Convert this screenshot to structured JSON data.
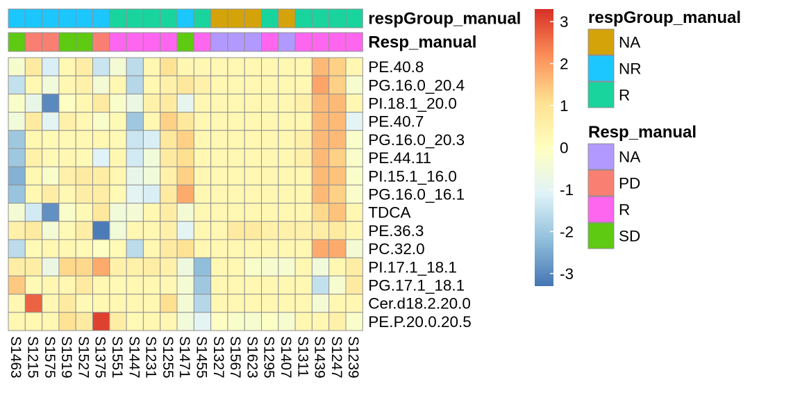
{
  "chart_data": {
    "type": "heatmap",
    "columns": [
      "S1463",
      "S1215",
      "S1575",
      "S1519",
      "S1527",
      "S1375",
      "S1551",
      "S1447",
      "S1231",
      "S1255",
      "S1471",
      "S1455",
      "S1327",
      "S1567",
      "S1623",
      "S1295",
      "S1407",
      "S1311",
      "S1439",
      "S1247",
      "S1239"
    ],
    "rows": [
      "PE.40.8",
      "PG.16.0_20.4",
      "PI.18.1_20.0",
      "PE.40.7",
      "PG.16.0_20.3",
      "PE.44.11",
      "PI.15.1_16.0",
      "PG.16.0_16.1",
      "TDCA",
      "PE.36.3",
      "PC.32.0",
      "PI.17.1_18.1",
      "PG.17.1_18.1",
      "Cer.d18.2.20.0",
      "PE.P.20.0.20.5"
    ],
    "values": [
      [
        -0.3,
        0.7,
        -1.2,
        0.3,
        0.6,
        -1.4,
        -0.4,
        -1.6,
        0.3,
        1.0,
        0.3,
        0.3,
        0.3,
        0.3,
        0.3,
        0.3,
        0.3,
        0.3,
        1.6,
        1.3,
        0.3
      ],
      [
        -1.5,
        0.3,
        -0.5,
        0.3,
        0.5,
        -0.4,
        0.3,
        -1.7,
        0.3,
        0.5,
        0.8,
        0.5,
        0.3,
        0.3,
        0.3,
        0.3,
        0.3,
        0.3,
        1.9,
        1.3,
        -0.3
      ],
      [
        -0.2,
        -0.8,
        -3.0,
        -0.1,
        0.3,
        0.7,
        -0.2,
        -0.7,
        0.5,
        0.7,
        -0.9,
        0.3,
        0.3,
        0.3,
        0.3,
        0.3,
        0.3,
        0.5,
        1.6,
        1.6,
        0.3
      ],
      [
        -0.5,
        0.7,
        -1.0,
        0.5,
        0.3,
        -0.2,
        0.2,
        -2.0,
        0.3,
        1.3,
        0.8,
        0.3,
        0.3,
        0.3,
        0.3,
        0.3,
        0.3,
        0.3,
        1.6,
        1.6,
        -1.0
      ],
      [
        -2.0,
        0.3,
        0.2,
        0.2,
        0.3,
        0.3,
        0.2,
        -1.4,
        -1.2,
        0.8,
        1.3,
        0.3,
        0.3,
        0.3,
        0.3,
        0.3,
        0.3,
        0.5,
        1.6,
        1.6,
        -0.2
      ],
      [
        -2.0,
        0.5,
        0.2,
        0.3,
        0.2,
        -1.1,
        0.3,
        -1.3,
        -0.5,
        0.7,
        1.1,
        0.3,
        0.3,
        0.3,
        0.3,
        0.3,
        0.3,
        0.5,
        1.6,
        1.3,
        -0.2
      ],
      [
        -2.4,
        0.3,
        -0.2,
        0.5,
        0.7,
        0.6,
        0.3,
        -0.8,
        -0.5,
        0.5,
        1.3,
        0.3,
        0.3,
        0.3,
        0.3,
        0.3,
        0.3,
        0.3,
        1.6,
        1.5,
        -0.2
      ],
      [
        -2.1,
        0.3,
        0.6,
        0.3,
        0.6,
        0.6,
        0.2,
        -1.0,
        -1.2,
        0.7,
        1.8,
        0.3,
        0.3,
        0.3,
        0.3,
        0.3,
        0.3,
        0.3,
        1.6,
        1.3,
        -0.2
      ],
      [
        -0.4,
        -1.3,
        -2.9,
        -0.2,
        0.2,
        0.8,
        -0.5,
        -0.4,
        0.3,
        0.6,
        -0.4,
        0.3,
        0.3,
        0.3,
        0.3,
        0.3,
        0.3,
        0.3,
        1.2,
        1.5,
        0.3
      ],
      [
        0.5,
        0.7,
        -0.4,
        0.2,
        0.6,
        -3.2,
        -0.5,
        0.3,
        0.3,
        0.5,
        -1.0,
        0.3,
        0.3,
        0.7,
        0.7,
        0.5,
        0.5,
        0.5,
        0.6,
        0.7,
        0.3
      ],
      [
        -1.6,
        0.2,
        0.3,
        0.3,
        0.2,
        -0.1,
        0.2,
        -1.6,
        0.3,
        0.7,
        1.0,
        0.3,
        0.3,
        0.3,
        0.3,
        0.3,
        0.3,
        0.3,
        1.8,
        1.8,
        -0.4
      ],
      [
        0.6,
        0.6,
        -0.7,
        1.2,
        1.2,
        1.8,
        0.5,
        0.5,
        0.6,
        0.5,
        -0.6,
        -2.2,
        0.3,
        0.3,
        -0.2,
        -0.3,
        -0.3,
        0.3,
        -0.5,
        0.3,
        0.6
      ],
      [
        1.4,
        0.2,
        0.3,
        0.3,
        0.7,
        0.3,
        0.2,
        0.3,
        0.3,
        0.3,
        -0.4,
        -2.0,
        0.3,
        0.3,
        0.3,
        0.3,
        0.3,
        0.3,
        -1.5,
        -0.3,
        0.7
      ],
      [
        0.3,
        2.7,
        0.3,
        0.7,
        0.2,
        0.3,
        0.3,
        0.3,
        0.3,
        1.1,
        -0.4,
        -1.7,
        0.3,
        0.3,
        0.3,
        0.3,
        0.3,
        0.3,
        -0.4,
        0.3,
        0.3
      ],
      [
        0.3,
        0.3,
        0.3,
        1.0,
        0.7,
        3.1,
        0.6,
        0.2,
        0.3,
        0.3,
        -0.5,
        -1.0,
        -0.1,
        -0.2,
        -0.3,
        -0.1,
        -0.3,
        0.3,
        0.3,
        0.5,
        -0.2
      ]
    ],
    "annotations": [
      {
        "name": "respGroup_manual",
        "values": [
          "NR",
          "NR",
          "NR",
          "NR",
          "NR",
          "NR",
          "R",
          "R",
          "R",
          "R",
          "NR",
          "R",
          "NA",
          "NA",
          "NA",
          "R",
          "NA",
          "R",
          "R",
          "R",
          "R"
        ]
      },
      {
        "name": "Resp_manual",
        "values": [
          "SD",
          "PD",
          "PD",
          "SD",
          "SD",
          "PD",
          "R",
          "R",
          "R",
          "R",
          "SD",
          "R",
          "NA",
          "NA",
          "NA",
          "R",
          "NA",
          "R",
          "R",
          "R",
          "R"
        ]
      }
    ],
    "legend_colors": {
      "respGroup_manual": {
        "NA": "#D4A30A",
        "NR": "#1CC6FF",
        "R": "#1AD49E"
      },
      "Resp_manual": {
        "NA": "#B299FF",
        "PD": "#FA7F73",
        "R": "#FF66EF",
        "SD": "#5FCA12"
      }
    },
    "colorbar": {
      "ticks": [
        3,
        2,
        1,
        0,
        -1,
        -2,
        -3
      ],
      "tick_labels": [
        "3",
        "2",
        "1",
        "0",
        "-1",
        "-2",
        "-3"
      ],
      "range": [
        -3.3,
        3.3
      ],
      "palette": [
        "#4575B4",
        "#91BFDB",
        "#E0F3F8",
        "#FFFFBF",
        "#FEE090",
        "#FC8D59",
        "#D73027"
      ]
    }
  }
}
